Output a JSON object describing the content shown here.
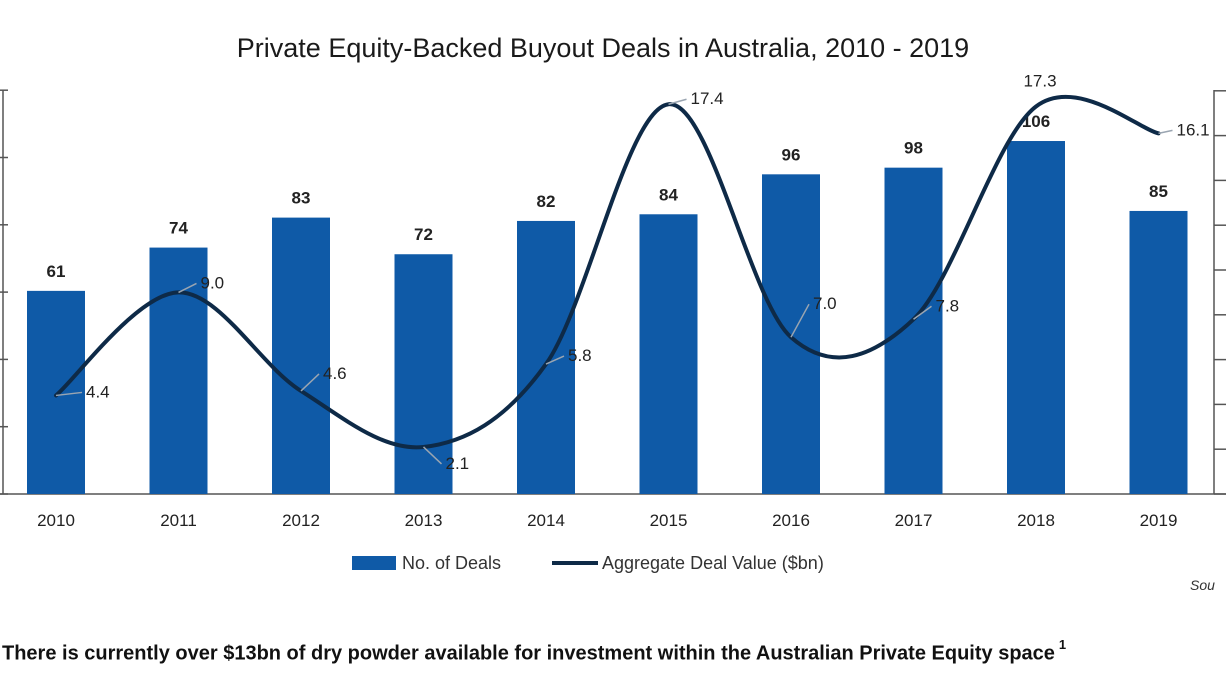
{
  "footnote": {
    "text": "There is currently over $13bn of dry powder available for investment within the Australian Private Equity space",
    "marker": "1"
  },
  "source_partial": "Sou",
  "colors": {
    "bar": "#0f5aa7",
    "line": "#0e2a47",
    "axis": "#555555"
  },
  "chart_data": {
    "type": "bar",
    "title": "Private Equity-Backed Buyout Deals in Australia, 2010 - 2019",
    "categories": [
      "2010",
      "2011",
      "2012",
      "2013",
      "2014",
      "2015",
      "2016",
      "2017",
      "2018",
      "2019"
    ],
    "series": [
      {
        "name": "No. of Deals",
        "type": "bar",
        "values": [
          61,
          74,
          83,
          72,
          82,
          84,
          96,
          98,
          106,
          85
        ]
      },
      {
        "name": "Aggregate Deal Value ($bn)",
        "type": "line",
        "smooth": true,
        "values": [
          4.4,
          9.0,
          4.6,
          2.1,
          5.8,
          17.4,
          7.0,
          7.8,
          17.3,
          16.1
        ],
        "labels": [
          "4.4",
          "9.0",
          "4.6",
          "2.1",
          "5.8",
          "17.4",
          "7.0",
          "7.8",
          "17.3",
          "16.1"
        ]
      }
    ],
    "left_axis": {
      "range": [
        0,
        120
      ]
    },
    "right_axis": {
      "range": [
        0,
        20
      ]
    },
    "legend_position": "bottom",
    "grid": false
  }
}
